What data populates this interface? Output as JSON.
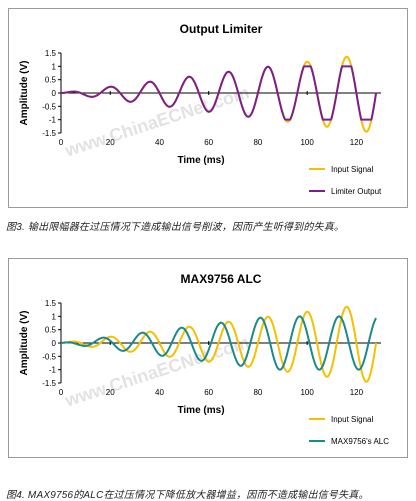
{
  "chart_data": [
    {
      "type": "line",
      "title": "Output Limiter",
      "xlabel": "Time (ms)",
      "ylabel": "Amplitude (V)",
      "xlim": [
        0,
        130
      ],
      "ylim": [
        -1.5,
        1.5
      ],
      "xticks": [
        "0",
        "20",
        "40",
        "60",
        "80",
        "100",
        "120"
      ],
      "yticks": [
        "1.5",
        "1",
        "0.5",
        "0",
        "-0.5",
        "-1",
        "-1.5"
      ],
      "legend_position": "bottom-right",
      "grid": false,
      "wave": {
        "frequency_hz": 62.5,
        "ramp_end_ms": 128,
        "limit_v": 1.0,
        "input_peak_v": 1.5
      },
      "series": [
        {
          "name": "Input Signal",
          "color": "#f5c000",
          "kind": "input"
        },
        {
          "name": "Limiter Output",
          "color": "#7b1f8c",
          "kind": "limiter"
        }
      ]
    },
    {
      "type": "line",
      "title": "MAX9756 ALC",
      "xlabel": "Time (ms)",
      "ylabel": "Amplitude (V)",
      "xlim": [
        0,
        130
      ],
      "ylim": [
        -1.5,
        1.5
      ],
      "xticks": [
        "0",
        "20",
        "40",
        "60",
        "80",
        "100",
        "120"
      ],
      "yticks": [
        "1.5",
        "1",
        "0.5",
        "0",
        "-0.5",
        "-1",
        "-1.5"
      ],
      "legend_position": "bottom-right",
      "grid": false,
      "wave": {
        "frequency_hz": 62.5,
        "ramp_end_ms": 128,
        "limit_v": 1.0,
        "input_peak_v": 1.5
      },
      "series": [
        {
          "name": "Input Signal",
          "color": "#f5c000",
          "kind": "input"
        },
        {
          "name": "MAX9756's ALC",
          "color": "#1a8a8a",
          "kind": "alc"
        }
      ]
    }
  ],
  "captions": {
    "fig3": "图3. 输出限幅器在过压情况下造成输出信号削波，因而产生听得到的失真。",
    "fig4": "图4. MAX9756的ALC在过压情况下降低放大器增益，因而不造成输出信号失真。"
  },
  "watermark": "www.ChinaECNet.com"
}
